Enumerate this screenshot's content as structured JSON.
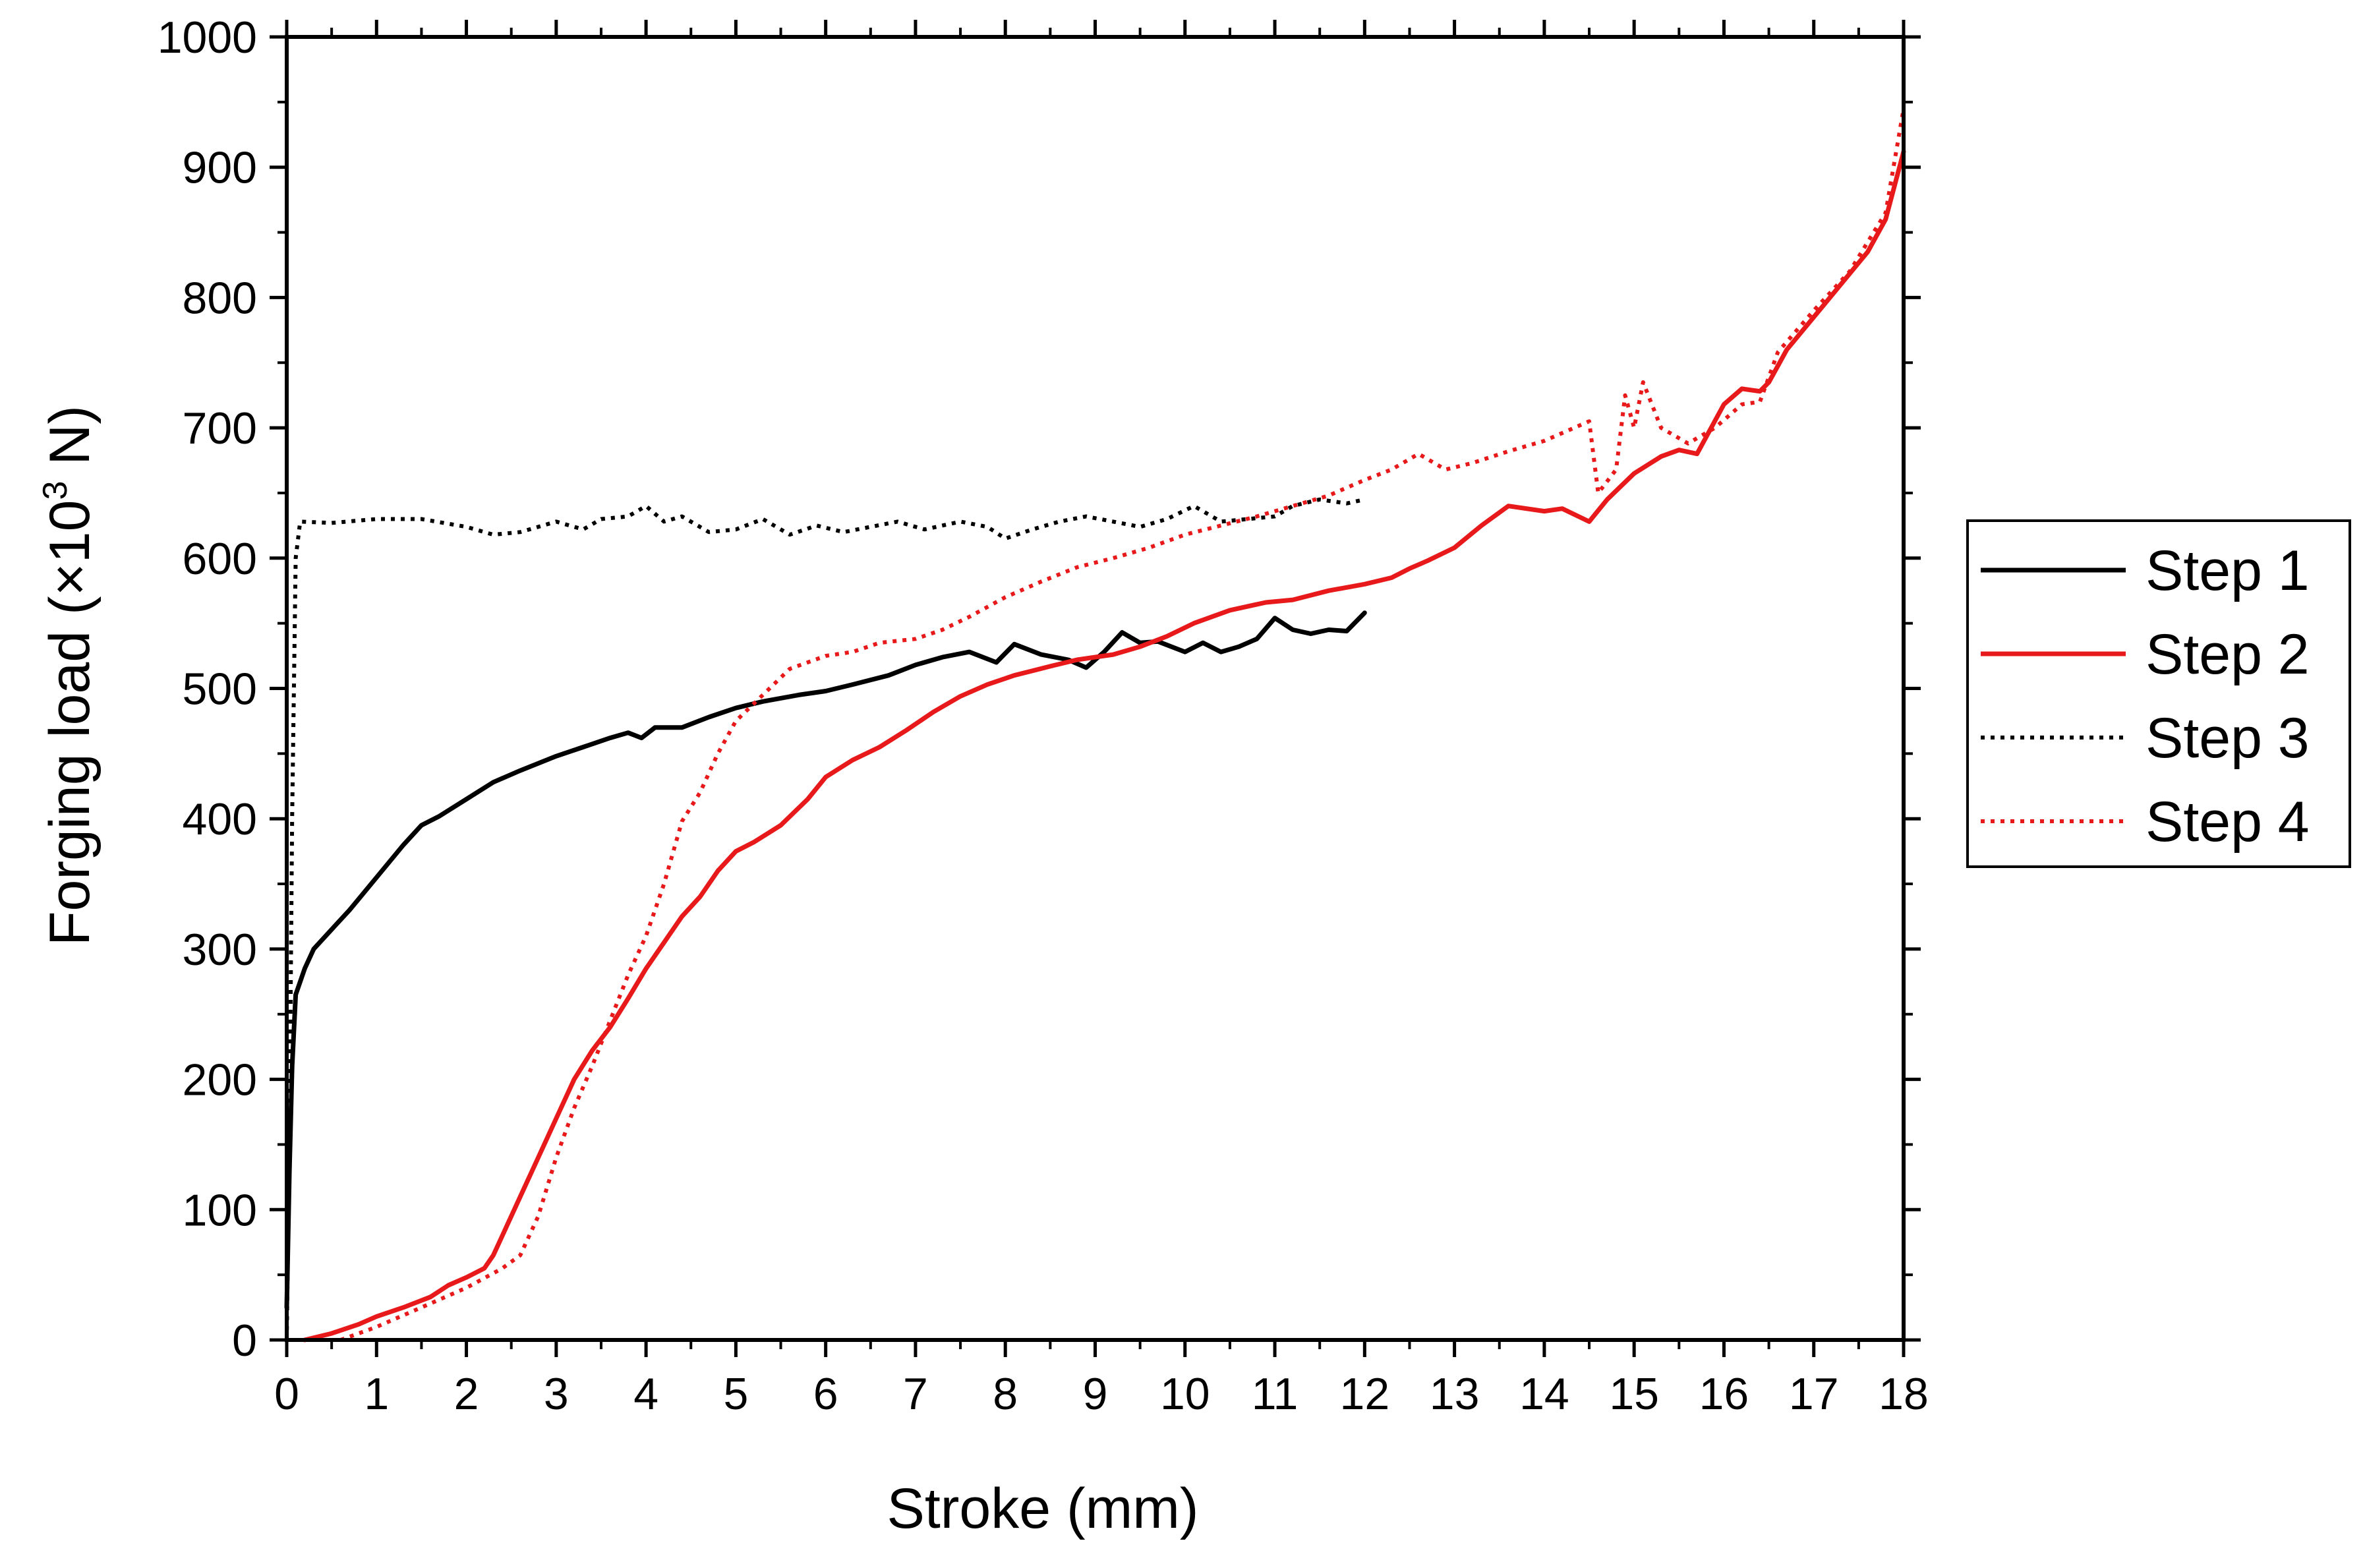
{
  "chart_data": {
    "type": "line",
    "title": "",
    "xlabel": "Stroke (mm)",
    "ylabel_main": "Forging load (×10",
    "ylabel_sup": "3",
    "ylabel_tail": " N)",
    "xlim": [
      0,
      18
    ],
    "ylim": [
      0,
      1000
    ],
    "x_ticks": [
      0,
      1,
      2,
      3,
      4,
      5,
      6,
      7,
      8,
      9,
      10,
      11,
      12,
      13,
      14,
      15,
      16,
      17,
      18
    ],
    "y_ticks": [
      0,
      100,
      200,
      300,
      400,
      500,
      600,
      700,
      800,
      900,
      1000
    ],
    "grid": false,
    "legend_placement": "right-outside",
    "series": [
      {
        "name": "Step 1",
        "color": "#000000",
        "style": "solid",
        "points": [
          [
            0.0,
            25
          ],
          [
            0.03,
            130
          ],
          [
            0.06,
            210
          ],
          [
            0.1,
            265
          ],
          [
            0.2,
            285
          ],
          [
            0.3,
            300
          ],
          [
            0.5,
            315
          ],
          [
            0.7,
            330
          ],
          [
            1.0,
            355
          ],
          [
            1.3,
            380
          ],
          [
            1.5,
            395
          ],
          [
            1.7,
            402
          ],
          [
            2.0,
            415
          ],
          [
            2.3,
            428
          ],
          [
            2.6,
            437
          ],
          [
            3.0,
            448
          ],
          [
            3.3,
            455
          ],
          [
            3.6,
            462
          ],
          [
            3.8,
            466
          ],
          [
            3.95,
            462
          ],
          [
            4.1,
            470
          ],
          [
            4.4,
            470
          ],
          [
            4.7,
            478
          ],
          [
            5.0,
            485
          ],
          [
            5.3,
            490
          ],
          [
            5.7,
            495
          ],
          [
            6.0,
            498
          ],
          [
            6.3,
            503
          ],
          [
            6.7,
            510
          ],
          [
            7.0,
            518
          ],
          [
            7.3,
            524
          ],
          [
            7.6,
            528
          ],
          [
            7.9,
            520
          ],
          [
            8.1,
            534
          ],
          [
            8.4,
            526
          ],
          [
            8.7,
            522
          ],
          [
            8.9,
            516
          ],
          [
            9.1,
            528
          ],
          [
            9.3,
            543
          ],
          [
            9.5,
            535
          ],
          [
            9.7,
            536
          ],
          [
            10.0,
            528
          ],
          [
            10.2,
            535
          ],
          [
            10.4,
            528
          ],
          [
            10.6,
            532
          ],
          [
            10.8,
            538
          ],
          [
            11.0,
            554
          ],
          [
            11.2,
            545
          ],
          [
            11.4,
            542
          ],
          [
            11.6,
            545
          ],
          [
            11.8,
            544
          ],
          [
            12.0,
            558
          ]
        ]
      },
      {
        "name": "Step 2",
        "color": "#e8191b",
        "style": "solid",
        "points": [
          [
            0.2,
            0
          ],
          [
            0.5,
            5
          ],
          [
            0.8,
            12
          ],
          [
            1.0,
            18
          ],
          [
            1.3,
            25
          ],
          [
            1.6,
            33
          ],
          [
            1.8,
            42
          ],
          [
            2.0,
            48
          ],
          [
            2.2,
            55
          ],
          [
            2.3,
            65
          ],
          [
            2.4,
            80
          ],
          [
            2.6,
            110
          ],
          [
            2.8,
            140
          ],
          [
            3.0,
            170
          ],
          [
            3.2,
            200
          ],
          [
            3.4,
            222
          ],
          [
            3.6,
            240
          ],
          [
            3.8,
            262
          ],
          [
            4.0,
            285
          ],
          [
            4.2,
            305
          ],
          [
            4.4,
            325
          ],
          [
            4.6,
            340
          ],
          [
            4.8,
            360
          ],
          [
            5.0,
            375
          ],
          [
            5.2,
            382
          ],
          [
            5.5,
            395
          ],
          [
            5.8,
            415
          ],
          [
            6.0,
            432
          ],
          [
            6.3,
            445
          ],
          [
            6.6,
            455
          ],
          [
            6.9,
            468
          ],
          [
            7.2,
            482
          ],
          [
            7.5,
            494
          ],
          [
            7.8,
            503
          ],
          [
            8.1,
            510
          ],
          [
            8.5,
            517
          ],
          [
            8.8,
            522
          ],
          [
            9.2,
            526
          ],
          [
            9.5,
            532
          ],
          [
            9.8,
            540
          ],
          [
            10.1,
            550
          ],
          [
            10.5,
            560
          ],
          [
            10.9,
            566
          ],
          [
            11.2,
            568
          ],
          [
            11.6,
            575
          ],
          [
            12.0,
            580
          ],
          [
            12.3,
            585
          ],
          [
            12.5,
            592
          ],
          [
            12.7,
            598
          ],
          [
            13.0,
            608
          ],
          [
            13.3,
            625
          ],
          [
            13.6,
            640
          ],
          [
            14.0,
            636
          ],
          [
            14.2,
            638
          ],
          [
            14.5,
            628
          ],
          [
            14.7,
            645
          ],
          [
            15.0,
            665
          ],
          [
            15.3,
            678
          ],
          [
            15.5,
            683
          ],
          [
            15.7,
            680
          ],
          [
            16.0,
            718
          ],
          [
            16.2,
            730
          ],
          [
            16.4,
            728
          ],
          [
            16.5,
            735
          ],
          [
            16.7,
            760
          ],
          [
            17.0,
            785
          ],
          [
            17.3,
            810
          ],
          [
            17.6,
            835
          ],
          [
            17.8,
            860
          ],
          [
            18.0,
            912
          ]
        ]
      },
      {
        "name": "Step 3",
        "color": "#000000",
        "style": "dotted",
        "points": [
          [
            0.0,
            0
          ],
          [
            0.03,
            150
          ],
          [
            0.06,
            400
          ],
          [
            0.1,
            600
          ],
          [
            0.15,
            628
          ],
          [
            0.5,
            627
          ],
          [
            1.0,
            630
          ],
          [
            1.5,
            630
          ],
          [
            2.0,
            624
          ],
          [
            2.3,
            618
          ],
          [
            2.6,
            620
          ],
          [
            3.0,
            628
          ],
          [
            3.3,
            622
          ],
          [
            3.5,
            630
          ],
          [
            3.8,
            632
          ],
          [
            4.0,
            640
          ],
          [
            4.2,
            628
          ],
          [
            4.4,
            632
          ],
          [
            4.7,
            620
          ],
          [
            5.0,
            622
          ],
          [
            5.3,
            630
          ],
          [
            5.6,
            618
          ],
          [
            5.9,
            625
          ],
          [
            6.2,
            620
          ],
          [
            6.5,
            624
          ],
          [
            6.8,
            628
          ],
          [
            7.1,
            622
          ],
          [
            7.5,
            628
          ],
          [
            7.8,
            624
          ],
          [
            8.0,
            615
          ],
          [
            8.3,
            622
          ],
          [
            8.6,
            628
          ],
          [
            8.9,
            632
          ],
          [
            9.2,
            628
          ],
          [
            9.5,
            624
          ],
          [
            9.8,
            630
          ],
          [
            10.1,
            640
          ],
          [
            10.4,
            628
          ],
          [
            10.7,
            630
          ],
          [
            11.0,
            632
          ],
          [
            11.2,
            640
          ],
          [
            11.5,
            645
          ],
          [
            11.8,
            642
          ],
          [
            12.0,
            645
          ]
        ]
      },
      {
        "name": "Step 4",
        "color": "#e8191b",
        "style": "dotted",
        "points": [
          [
            0.6,
            0
          ],
          [
            1.0,
            10
          ],
          [
            1.5,
            25
          ],
          [
            2.0,
            40
          ],
          [
            2.4,
            55
          ],
          [
            2.6,
            65
          ],
          [
            2.8,
            95
          ],
          [
            3.0,
            140
          ],
          [
            3.2,
            178
          ],
          [
            3.4,
            210
          ],
          [
            3.6,
            245
          ],
          [
            3.8,
            280
          ],
          [
            4.0,
            310
          ],
          [
            4.2,
            350
          ],
          [
            4.4,
            398
          ],
          [
            4.6,
            420
          ],
          [
            4.8,
            450
          ],
          [
            5.0,
            475
          ],
          [
            5.3,
            495
          ],
          [
            5.6,
            515
          ],
          [
            6.0,
            525
          ],
          [
            6.3,
            528
          ],
          [
            6.6,
            535
          ],
          [
            7.0,
            538
          ],
          [
            7.3,
            545
          ],
          [
            7.6,
            555
          ],
          [
            8.0,
            570
          ],
          [
            8.4,
            582
          ],
          [
            8.8,
            593
          ],
          [
            9.2,
            600
          ],
          [
            9.6,
            608
          ],
          [
            10.0,
            618
          ],
          [
            10.4,
            625
          ],
          [
            10.8,
            632
          ],
          [
            11.2,
            640
          ],
          [
            11.6,
            648
          ],
          [
            12.0,
            660
          ],
          [
            12.3,
            668
          ],
          [
            12.6,
            680
          ],
          [
            12.9,
            668
          ],
          [
            13.2,
            673
          ],
          [
            13.6,
            682
          ],
          [
            14.0,
            690
          ],
          [
            14.5,
            705
          ],
          [
            14.6,
            650
          ],
          [
            14.8,
            668
          ],
          [
            14.9,
            725
          ],
          [
            15.0,
            700
          ],
          [
            15.1,
            735
          ],
          [
            15.3,
            700
          ],
          [
            15.6,
            688
          ],
          [
            15.9,
            700
          ],
          [
            16.2,
            718
          ],
          [
            16.4,
            720
          ],
          [
            16.6,
            758
          ],
          [
            17.0,
            790
          ],
          [
            17.4,
            820
          ],
          [
            17.8,
            865
          ],
          [
            18.0,
            945
          ]
        ]
      }
    ]
  }
}
